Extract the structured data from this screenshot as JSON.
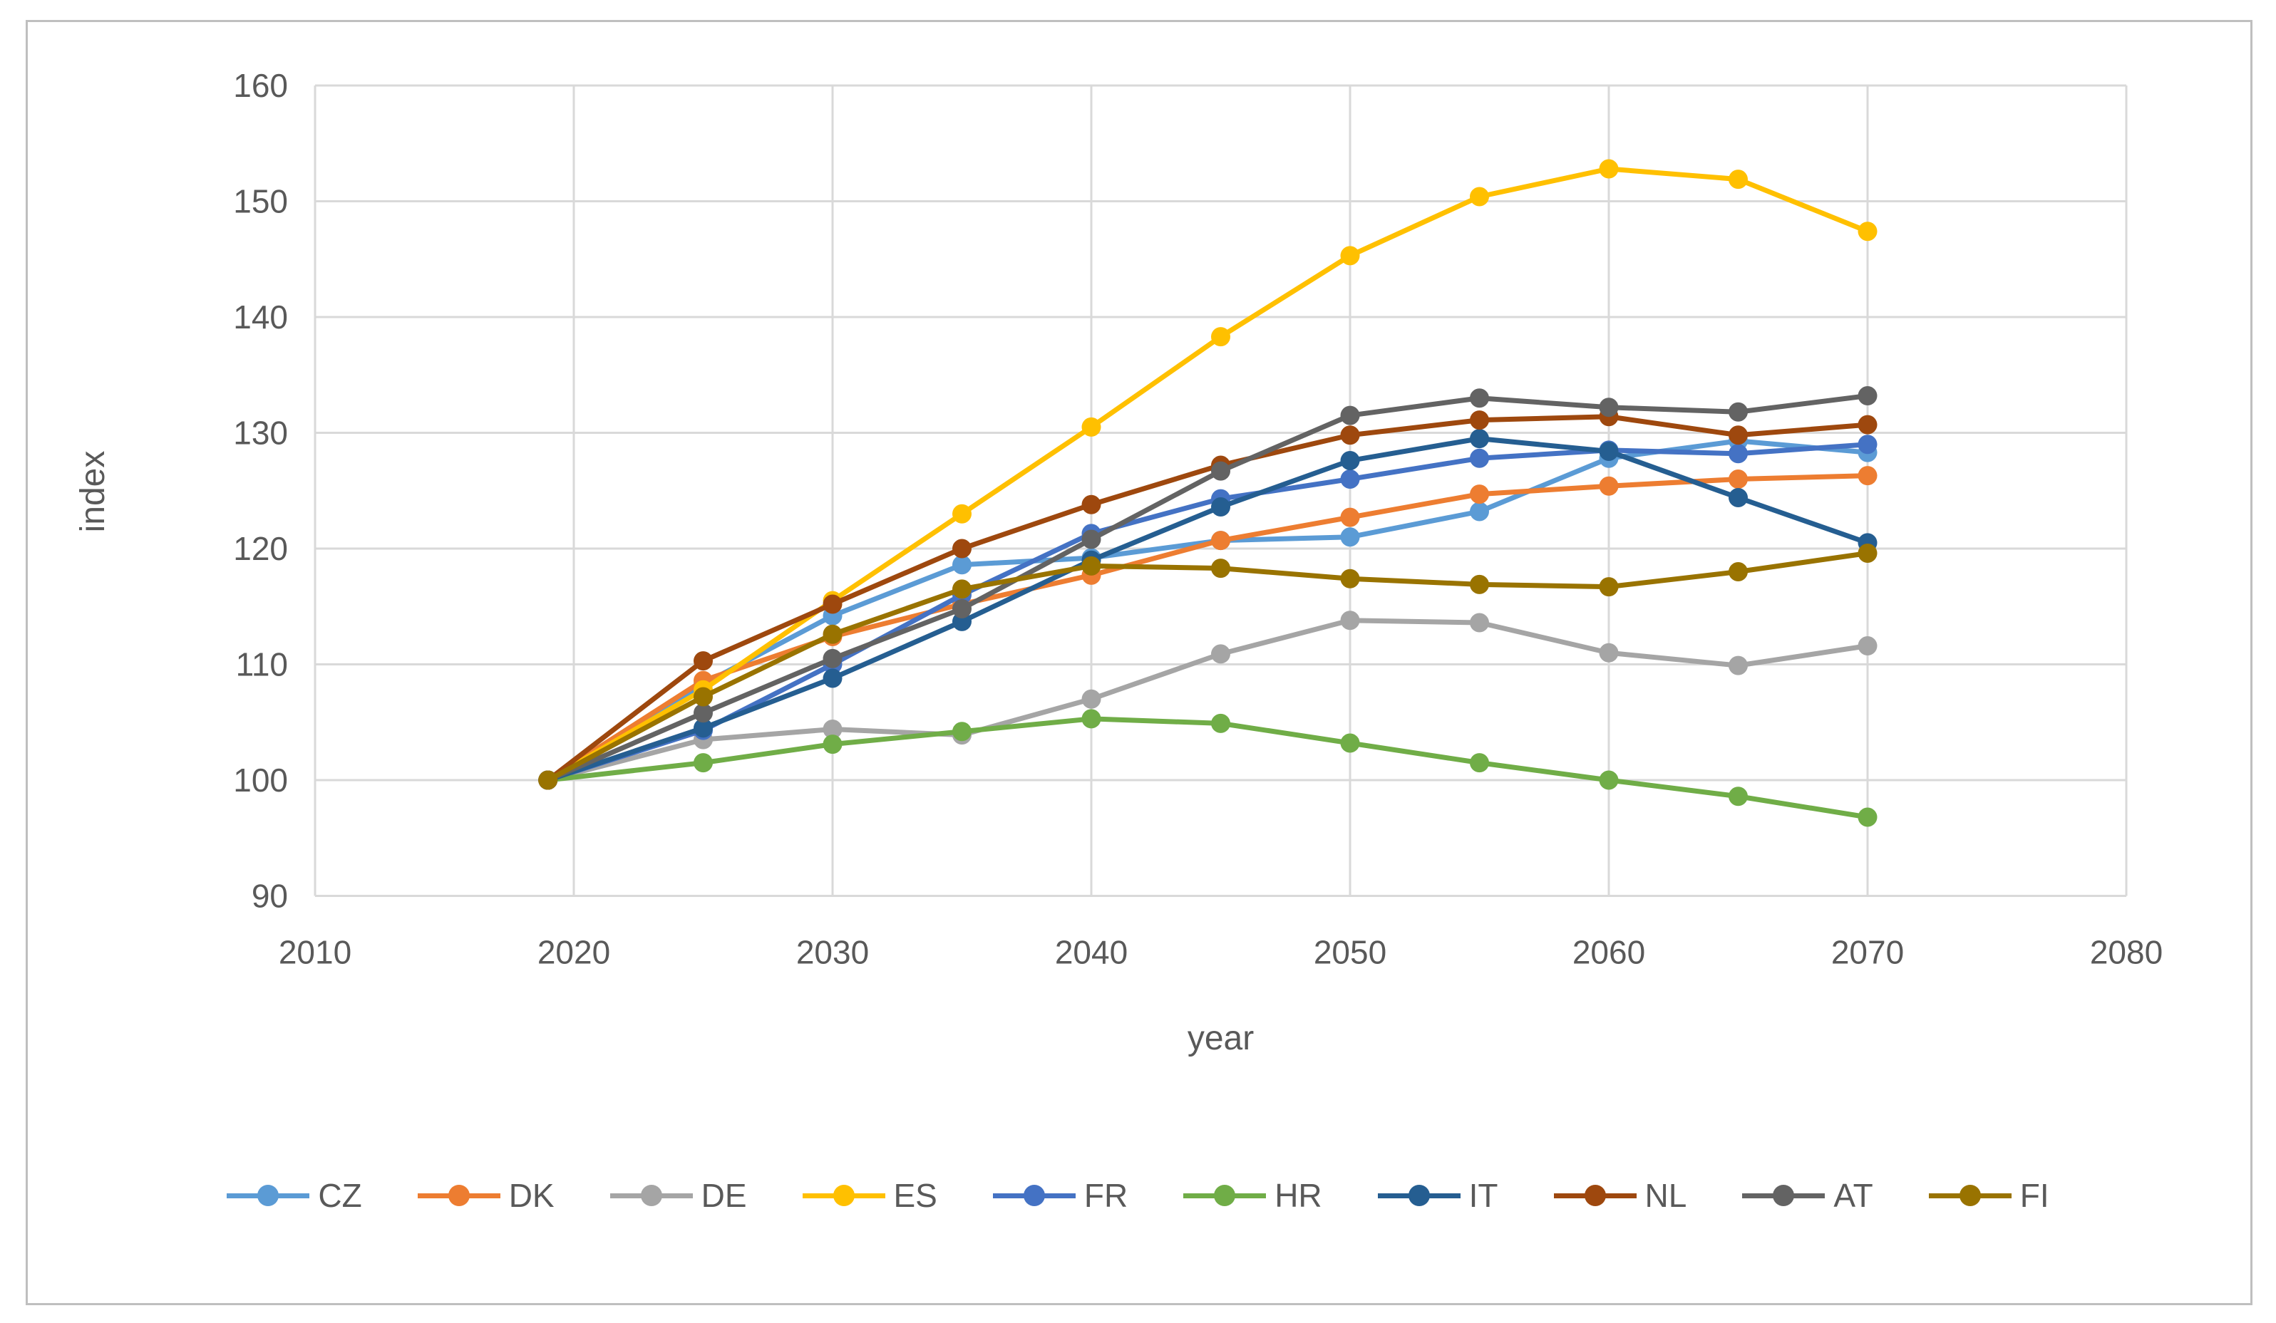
{
  "figure": {
    "background": "#ffffff",
    "border_color": "#bfbfbf",
    "gridline_color": "#d9d9d9",
    "tick_text_color": "#595959"
  },
  "chart_data": {
    "type": "line",
    "title": "",
    "xlabel": "year",
    "ylabel": "index",
    "x": [
      2019,
      2025,
      2030,
      2035,
      2040,
      2045,
      2050,
      2055,
      2060,
      2065,
      2070
    ],
    "xlim": [
      2010,
      2080
    ],
    "ylim": [
      90,
      160
    ],
    "x_ticks": [
      2010,
      2020,
      2030,
      2040,
      2050,
      2060,
      2070,
      2080
    ],
    "y_ticks": [
      90,
      100,
      110,
      120,
      130,
      140,
      150,
      160
    ],
    "grid": true,
    "marker": "circle",
    "legend_position": "bottom",
    "series": [
      {
        "name": "CZ",
        "color": "#5B9BD5",
        "values": [
          100,
          108.3,
          114.2,
          118.6,
          119.2,
          120.7,
          121.0,
          123.2,
          127.8,
          129.3,
          128.3
        ]
      },
      {
        "name": "DK",
        "color": "#ED7D31",
        "values": [
          100,
          108.6,
          112.4,
          115.2,
          117.7,
          120.7,
          122.7,
          124.7,
          125.4,
          126.0,
          126.3
        ]
      },
      {
        "name": "DE",
        "color": "#A5A5A5",
        "values": [
          100,
          103.5,
          104.4,
          103.9,
          107.0,
          110.9,
          113.8,
          113.6,
          111.0,
          109.9,
          111.6
        ]
      },
      {
        "name": "ES",
        "color": "#FFC000",
        "values": [
          100,
          107.8,
          115.5,
          123.0,
          130.5,
          138.3,
          145.3,
          150.4,
          152.8,
          151.9,
          147.4
        ]
      },
      {
        "name": "FR",
        "color": "#4472C4",
        "values": [
          100,
          104.3,
          110.0,
          116.0,
          121.3,
          124.3,
          126.0,
          127.8,
          128.5,
          128.2,
          129.0
        ]
      },
      {
        "name": "HR",
        "color": "#70AD47",
        "values": [
          100,
          101.5,
          103.1,
          104.2,
          105.3,
          104.9,
          103.2,
          101.5,
          100.0,
          98.6,
          96.8
        ]
      },
      {
        "name": "IT",
        "color": "#255E91",
        "values": [
          100,
          104.5,
          108.8,
          113.7,
          119.0,
          123.6,
          127.6,
          129.5,
          128.4,
          124.4,
          120.5
        ]
      },
      {
        "name": "NL",
        "color": "#9E480E",
        "values": [
          100,
          110.3,
          115.2,
          120.0,
          123.8,
          127.2,
          129.8,
          131.1,
          131.4,
          129.8,
          130.7
        ]
      },
      {
        "name": "AT",
        "color": "#636363",
        "values": [
          100,
          105.8,
          110.5,
          114.8,
          120.8,
          126.7,
          131.5,
          133.0,
          132.2,
          131.8,
          133.2
        ]
      },
      {
        "name": "FI",
        "color": "#997300",
        "values": [
          100,
          107.2,
          112.6,
          116.5,
          118.5,
          118.3,
          117.4,
          116.9,
          116.7,
          118.0,
          119.6
        ]
      }
    ]
  }
}
